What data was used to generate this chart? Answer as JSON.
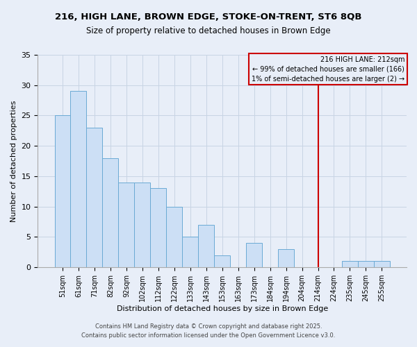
{
  "title1": "216, HIGH LANE, BROWN EDGE, STOKE-ON-TRENT, ST6 8QB",
  "title2": "Size of property relative to detached houses in Brown Edge",
  "xlabel": "Distribution of detached houses by size in Brown Edge",
  "ylabel": "Number of detached properties",
  "bar_labels": [
    "51sqm",
    "61sqm",
    "71sqm",
    "82sqm",
    "92sqm",
    "102sqm",
    "112sqm",
    "122sqm",
    "133sqm",
    "143sqm",
    "153sqm",
    "163sqm",
    "173sqm",
    "184sqm",
    "194sqm",
    "204sqm",
    "214sqm",
    "224sqm",
    "235sqm",
    "245sqm",
    "255sqm"
  ],
  "bar_values": [
    25,
    29,
    23,
    18,
    14,
    14,
    13,
    10,
    5,
    7,
    2,
    0,
    4,
    0,
    3,
    0,
    0,
    0,
    1,
    1,
    1
  ],
  "bar_color": "#ccdff5",
  "bar_edge_color": "#6aaad4",
  "grid_color": "#c8d4e4",
  "annotation_line_x_label": "214sqm",
  "annotation_line_color": "#cc0000",
  "annotation_text_line1": "216 HIGH LANE: 212sqm",
  "annotation_text_line2": "← 99% of detached houses are smaller (166)",
  "annotation_text_line3": "1% of semi-detached houses are larger (2) →",
  "ylim": [
    0,
    35
  ],
  "yticks": [
    0,
    5,
    10,
    15,
    20,
    25,
    30,
    35
  ],
  "footer1": "Contains HM Land Registry data © Crown copyright and database right 2025.",
  "footer2": "Contains public sector information licensed under the Open Government Licence v3.0.",
  "bg_color": "#e8eef8"
}
